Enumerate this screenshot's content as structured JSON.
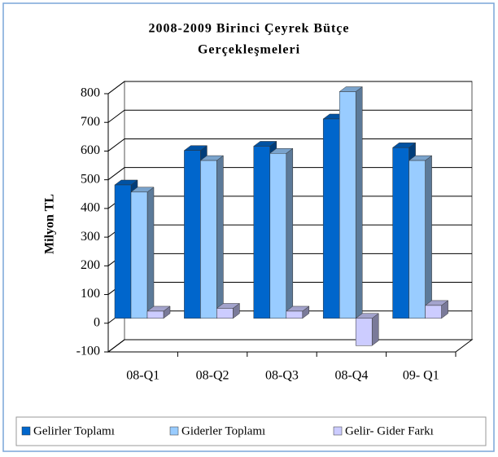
{
  "chart_data": {
    "type": "bar3d",
    "title": [
      "2008-2009 Birinci Çeyrek Bütçe",
      "Gerçekleşmeleri"
    ],
    "y_label": "Milyon TL",
    "categories": [
      "08-Q1",
      "08-Q2",
      "08-Q3",
      "08-Q4",
      "09- Q1"
    ],
    "series": [
      {
        "name": "Gelirler Toplamı",
        "color": "#0066cc",
        "values": [
          465,
          585,
          600,
          695,
          595
        ]
      },
      {
        "name": "Giderler Toplamı",
        "color": "#99ccff",
        "values": [
          440,
          550,
          575,
          790,
          550
        ]
      },
      {
        "name": "Gelir- Gider Farkı",
        "color": "#ccccff",
        "values": [
          25,
          35,
          25,
          -95,
          45
        ]
      }
    ],
    "ylim": [
      -100,
      800
    ],
    "yticks": [
      -100,
      0,
      100,
      200,
      300,
      400,
      500,
      600,
      700,
      800
    ],
    "grid": true,
    "legend": "bottom"
  }
}
